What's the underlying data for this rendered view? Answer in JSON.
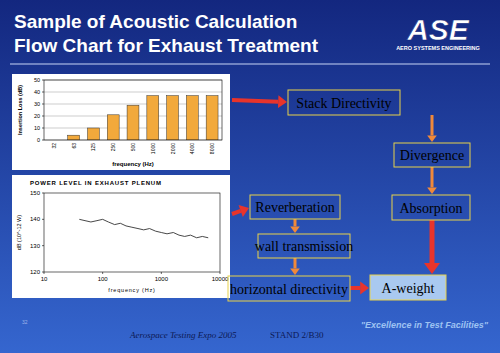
{
  "header": {
    "title_line1": "Sample of Acoustic Calculation",
    "title_line2": "Flow Chart for Exhaust Treatment",
    "logo": "ASE",
    "logo_subtitle": "AERO SYSTEMS ENGINEERING"
  },
  "chart_data": [
    {
      "type": "bar",
      "y_label": "Insertion Loss (dB)",
      "x_label": "frequency (Hz)",
      "categories": [
        "32",
        "63",
        "125",
        "250",
        "500",
        "1000",
        "2000",
        "4000",
        "8000"
      ],
      "values": [
        0,
        4,
        10,
        21,
        29,
        37,
        37,
        37,
        37
      ],
      "color": "#f2a93b",
      "ylim": [
        0,
        50
      ],
      "yticks": [
        0,
        10,
        20,
        30,
        40,
        50
      ],
      "grid": true
    },
    {
      "type": "line",
      "title": "POWER LEVEL IN EXHAUST PLENUM",
      "y_label": "dB (10^-12 W)",
      "x_label": "frequency (Hz)",
      "x": [
        40,
        50,
        63,
        80,
        100,
        125,
        160,
        200,
        250,
        315,
        400,
        500,
        630,
        800,
        1000,
        1250,
        1600,
        2000,
        2500,
        3150,
        4000,
        5000,
        6300
      ],
      "values": [
        140,
        139.5,
        139,
        139.5,
        140,
        139,
        138,
        138.5,
        137.5,
        137,
        136.5,
        136,
        136.5,
        135.5,
        135,
        134.5,
        135,
        134,
        133.5,
        134,
        133,
        133.5,
        133
      ],
      "color": "#333333",
      "log": "x",
      "xlim": [
        10,
        10000
      ],
      "xticks": [
        10,
        100,
        1000,
        10000
      ],
      "ylim": [
        120,
        150
      ],
      "yticks": [
        120,
        130,
        140,
        150
      ],
      "grid": false
    }
  ],
  "flowchart": {
    "nodes": [
      {
        "label": "Stack Directivity"
      },
      {
        "label": "Divergence"
      },
      {
        "label": "Absorption"
      },
      {
        "label": "A-weight"
      },
      {
        "label": "Reverberation"
      },
      {
        "label": "wall transmission"
      },
      {
        "label": "horizontal directivity"
      }
    ]
  },
  "footer": {
    "page": "32",
    "event": "Aerospace Testing Expo 2005",
    "stand": "STAND 2/B30",
    "slogan": "\"Excellence in Test Facilities\""
  }
}
